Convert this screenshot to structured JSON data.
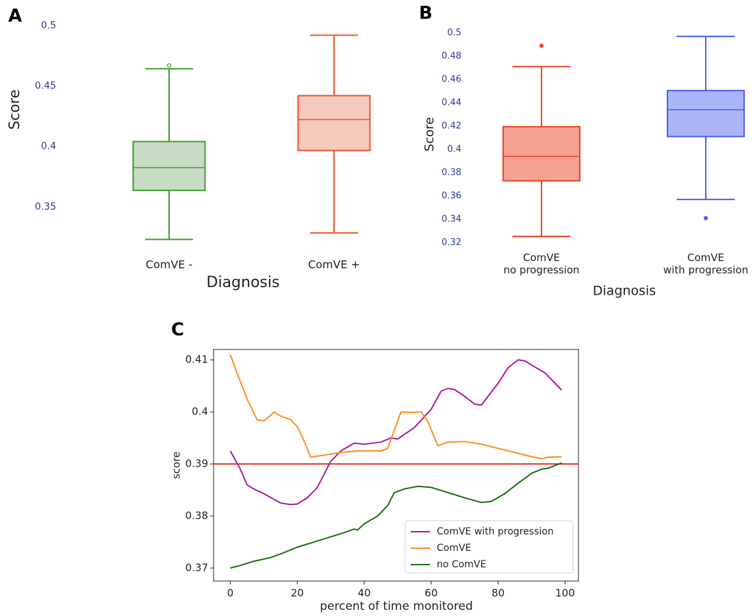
{
  "chart_data": [
    {
      "type": "box",
      "panel": "A",
      "y_label": "Score",
      "x_label": "Diagnosis",
      "categories": [
        "ComVE -",
        "ComVE +"
      ],
      "boxes": [
        {
          "whislo": 0.323,
          "q1": 0.3636,
          "med": 0.3824,
          "q3": 0.404,
          "whishi": 0.4642,
          "fliers": [
            0.467
          ],
          "color": "#3a9e2a",
          "fill": "#c9dcc5"
        },
        {
          "whislo": 0.3284,
          "q1": 0.3966,
          "med": 0.4222,
          "q3": 0.442,
          "whishi": 0.492,
          "fliers": [],
          "color": "#e8552a",
          "fill": "#f5c9bc"
        }
      ],
      "ylim": [
        0.317,
        0.503
      ],
      "yticks": [
        0.35,
        0.4,
        0.45,
        0.5
      ]
    },
    {
      "type": "box",
      "panel": "B",
      "y_label": "Score",
      "x_label": "Diagnosis",
      "categories": [
        "ComVE\nno progression",
        "ComVE\nwith progression"
      ],
      "boxes": [
        {
          "whislo": 0.3253,
          "q1": 0.373,
          "med": 0.394,
          "q3": 0.4195,
          "whishi": 0.471,
          "fliers": [
            0.489
          ],
          "color": "#e8452a",
          "fill": "#f4a191"
        },
        {
          "whislo": 0.357,
          "q1": 0.411,
          "med": 0.434,
          "q3": 0.4505,
          "whishi": 0.497,
          "fliers": [
            0.341
          ],
          "color": "#4a5ee8",
          "fill": "#aab4f8"
        }
      ],
      "ylim": [
        0.315,
        0.505
      ],
      "yticks": [
        0.32,
        0.34,
        0.36,
        0.38,
        0.4,
        0.42,
        0.44,
        0.46,
        0.48,
        0.5
      ]
    },
    {
      "type": "line",
      "panel": "C",
      "y_label": "score",
      "x_label": "percent of time monitored",
      "legend": "lower right",
      "hline": {
        "value": 0.39,
        "color": "#e8332a"
      },
      "series": [
        {
          "name": "ComVE with progression",
          "color": "#b0169e",
          "x": [
            0,
            3,
            5,
            7,
            10,
            15,
            18,
            20,
            23,
            26,
            30,
            33,
            37,
            40,
            45,
            48,
            50,
            55,
            60,
            63,
            65,
            67,
            70,
            73,
            75,
            77,
            80,
            83,
            86,
            88,
            90,
            94,
            97,
            99
          ],
          "values": [
            0.3925,
            0.389,
            0.386,
            0.3852,
            0.3843,
            0.3825,
            0.3822,
            0.3823,
            0.3835,
            0.3855,
            0.3905,
            0.3925,
            0.394,
            0.3938,
            0.3942,
            0.395,
            0.3948,
            0.397,
            0.4005,
            0.404,
            0.4045,
            0.4043,
            0.403,
            0.4015,
            0.4013,
            0.403,
            0.4055,
            0.4085,
            0.41,
            0.4098,
            0.409,
            0.4075,
            0.4055,
            0.4042
          ]
        },
        {
          "name": "ComVE",
          "color": "#ff8c1a",
          "x": [
            0,
            2,
            5,
            8,
            10,
            12,
            13,
            15,
            18,
            20,
            22,
            24,
            28,
            33,
            38,
            45,
            47,
            49,
            51,
            54,
            57,
            59,
            62,
            65,
            70,
            75,
            80,
            85,
            90,
            93,
            95,
            99
          ],
          "values": [
            0.411,
            0.4075,
            0.4025,
            0.3985,
            0.3983,
            0.3993,
            0.4,
            0.3992,
            0.3985,
            0.3972,
            0.3945,
            0.3913,
            0.3917,
            0.3922,
            0.3925,
            0.3925,
            0.393,
            0.3965,
            0.4,
            0.3999,
            0.4,
            0.3982,
            0.3935,
            0.3942,
            0.3943,
            0.3938,
            0.393,
            0.3922,
            0.3914,
            0.391,
            0.3913,
            0.3914
          ]
        },
        {
          "name": "no ComVE",
          "color": "#1a6e12",
          "x": [
            0,
            3,
            7,
            12,
            15,
            20,
            25,
            30,
            34,
            37,
            38,
            40,
            44,
            47,
            49,
            52,
            56,
            60,
            65,
            70,
            75,
            78,
            82,
            86,
            90,
            93,
            95,
            99
          ],
          "values": [
            0.37,
            0.3705,
            0.3713,
            0.372,
            0.3727,
            0.374,
            0.375,
            0.376,
            0.3768,
            0.3775,
            0.3773,
            0.3785,
            0.38,
            0.382,
            0.3845,
            0.3852,
            0.3857,
            0.3855,
            0.3845,
            0.3835,
            0.3826,
            0.3828,
            0.3843,
            0.3863,
            0.3882,
            0.389,
            0.3892,
            0.3902
          ]
        }
      ],
      "xlim": [
        -5,
        104
      ],
      "xticks": [
        0,
        20,
        40,
        60,
        80,
        100
      ],
      "ylim": [
        0.3675,
        0.412
      ],
      "yticks": [
        0.37,
        0.38,
        0.39,
        0.4,
        0.41
      ]
    }
  ]
}
